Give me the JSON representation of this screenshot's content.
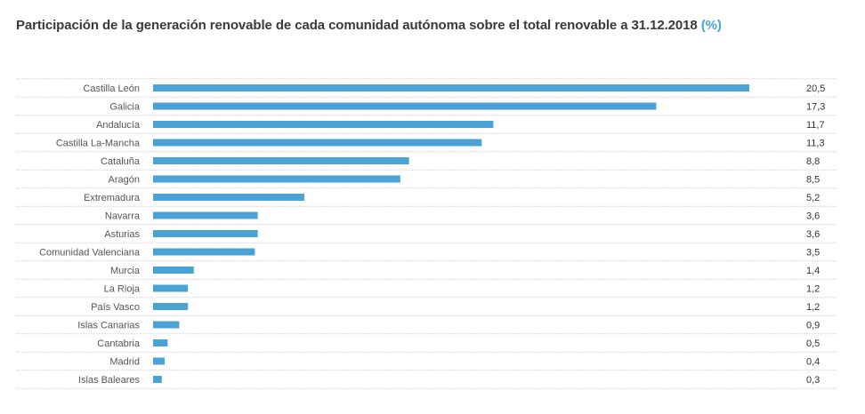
{
  "title": "Participación de la generación renovable de cada comunidad autónoma sobre el total renovable a 31.12.2018",
  "title_unit": "(%)",
  "colors": {
    "bar": "#4aa3d4",
    "grid": "#d9d9d9",
    "title_unit": "#4aa3d4"
  },
  "chart_data": {
    "type": "bar",
    "orientation": "horizontal",
    "title": "Participación de la generación renovable de cada comunidad autónoma sobre el total renovable a 31.12.2018 (%)",
    "categories": [
      "Castilla León",
      "Galicia",
      "Andalucía",
      "Castilla La-Mancha",
      "Cataluña",
      "Aragón",
      "Extremadura",
      "Navarra",
      "Asturias",
      "Comunidad Valenciana",
      "Murcia",
      "La Rioja",
      "País Vasco",
      "Islas Canarias",
      "Cantabria",
      "Madrid",
      "Islas Baleares"
    ],
    "values": [
      20.5,
      17.3,
      11.7,
      11.3,
      8.8,
      8.5,
      5.2,
      3.6,
      3.6,
      3.5,
      1.4,
      1.2,
      1.2,
      0.9,
      0.5,
      0.4,
      0.3
    ],
    "value_labels": [
      "20,5",
      "17,3",
      "11,7",
      "11,3",
      "8,8",
      "8,5",
      "5,2",
      "3,6",
      "3,6",
      "3,5",
      "1,4",
      "1,2",
      "1,2",
      "0,9",
      "0,5",
      "0,4",
      "0,3"
    ],
    "xlim": [
      0,
      20.5
    ],
    "grid": true,
    "legend": "none"
  }
}
